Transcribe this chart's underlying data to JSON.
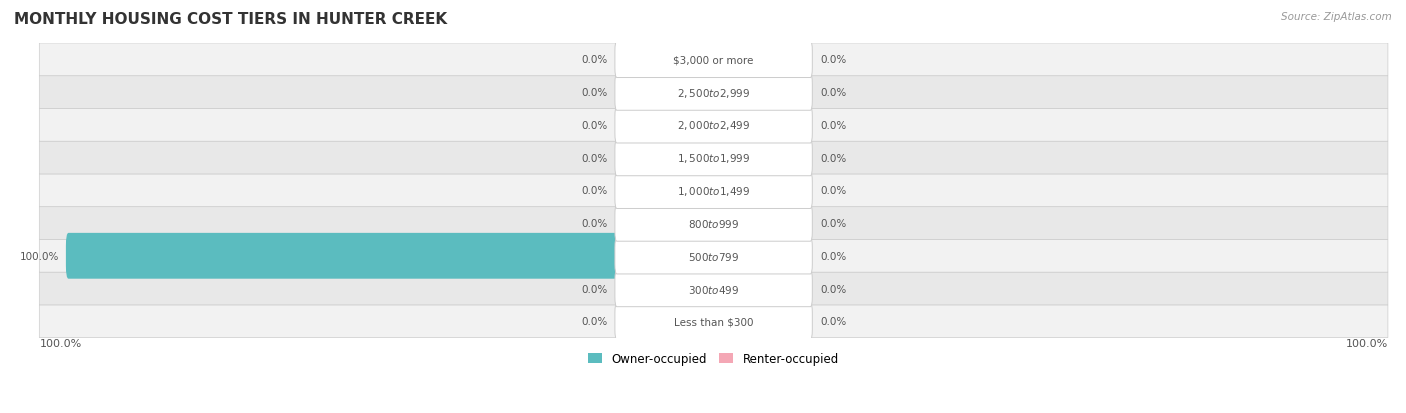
{
  "title": "MONTHLY HOUSING COST TIERS IN HUNTER CREEK",
  "source": "Source: ZipAtlas.com",
  "categories": [
    "Less than $300",
    "$300 to $499",
    "$500 to $799",
    "$800 to $999",
    "$1,000 to $1,499",
    "$1,500 to $1,999",
    "$2,000 to $2,499",
    "$2,500 to $2,999",
    "$3,000 or more"
  ],
  "owner_values": [
    0.0,
    0.0,
    100.0,
    0.0,
    0.0,
    0.0,
    0.0,
    0.0,
    0.0
  ],
  "renter_values": [
    0.0,
    0.0,
    0.0,
    0.0,
    0.0,
    0.0,
    0.0,
    0.0,
    0.0
  ],
  "owner_color": "#5bbcbf",
  "renter_color": "#f4a7b5",
  "row_bg_colors": [
    "#f2f2f2",
    "#e8e8e8"
  ],
  "label_color": "#555555",
  "title_color": "#333333",
  "source_color": "#999999",
  "figsize": [
    14.06,
    4.14
  ],
  "dpi": 100,
  "owner_label": "Owner-occupied",
  "renter_label": "Renter-occupied",
  "left_axis_label": "100.0%",
  "right_axis_label": "100.0%"
}
